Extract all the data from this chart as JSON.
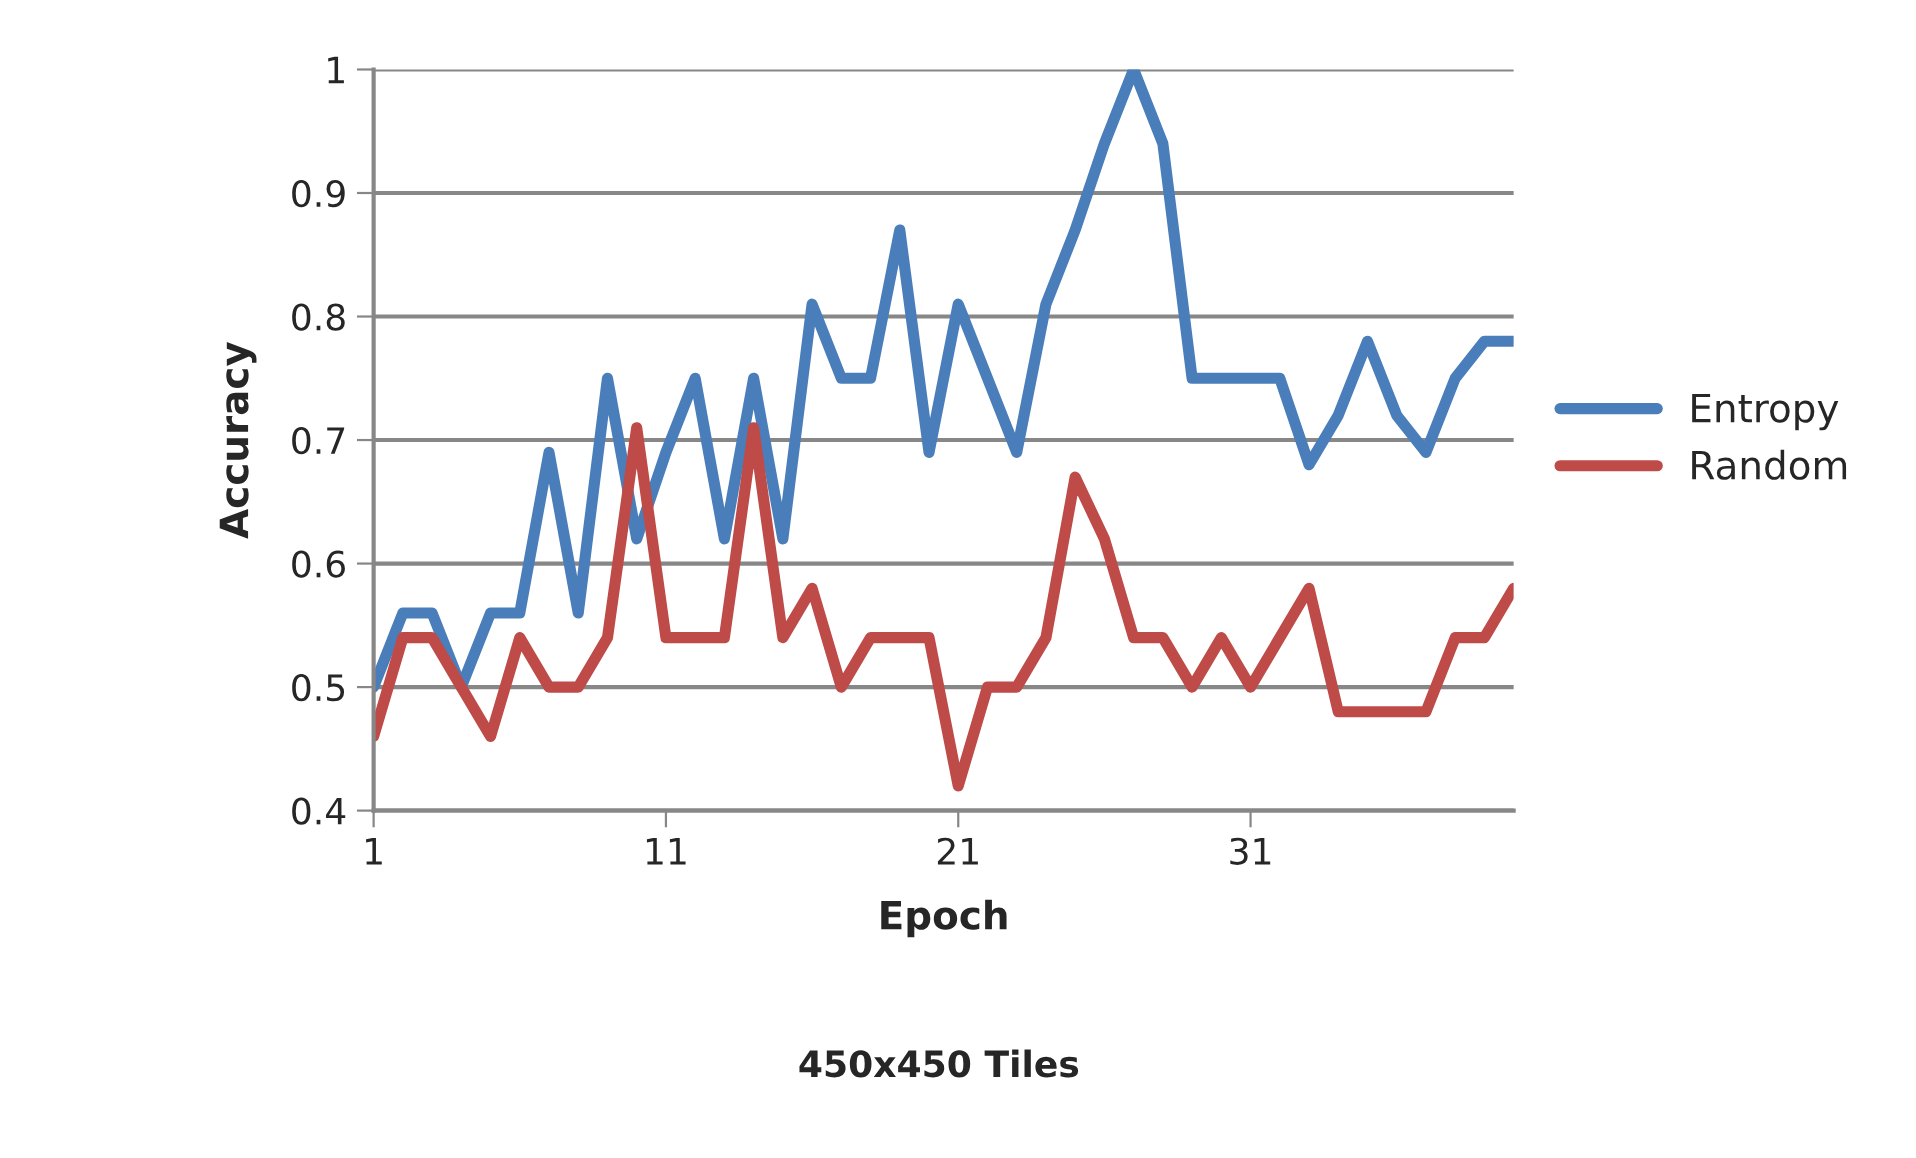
{
  "chart_data": {
    "type": "line",
    "title": "450x450 Tiles",
    "xlabel": "Epoch",
    "ylabel": "Accuracy",
    "categories": [
      "1",
      null,
      null,
      null,
      null,
      null,
      null,
      null,
      null,
      null,
      "11",
      null,
      null,
      null,
      null,
      null,
      null,
      null,
      null,
      null,
      "21",
      null,
      null,
      null,
      null,
      null,
      null,
      null,
      null,
      null,
      "31",
      null,
      null,
      null,
      null,
      null,
      null,
      null,
      null,
      null
    ],
    "series": [
      {
        "name": "Entropy",
        "color": "#4a7ebb",
        "values": [
          0.5,
          0.56,
          0.56,
          0.5,
          0.56,
          0.56,
          0.69,
          0.56,
          0.75,
          0.62,
          0.69,
          0.75,
          0.62,
          0.75,
          0.62,
          0.81,
          0.75,
          0.75,
          0.87,
          0.69,
          0.81,
          0.75,
          0.69,
          0.81,
          0.87,
          0.94,
          1.0,
          0.94,
          0.75,
          0.75,
          0.75,
          0.75,
          0.68,
          0.72,
          0.78,
          0.72,
          0.69,
          0.75,
          0.78,
          0.78
        ]
      },
      {
        "name": "Random",
        "color": "#be4b48",
        "values": [
          0.46,
          0.54,
          0.54,
          0.5,
          0.46,
          0.54,
          0.5,
          0.5,
          0.54,
          0.71,
          0.54,
          0.54,
          0.54,
          0.71,
          0.54,
          0.58,
          0.5,
          0.54,
          0.54,
          0.54,
          0.42,
          0.5,
          0.5,
          0.54,
          0.67,
          0.62,
          0.54,
          0.54,
          0.5,
          0.54,
          0.5,
          0.54,
          0.58,
          0.48,
          0.48,
          0.48,
          0.48,
          0.54,
          0.54,
          0.58
        ]
      }
    ],
    "ylim": [
      0.4,
      1
    ],
    "yticks": [
      0.4,
      0.5,
      0.6,
      0.7,
      0.8,
      0.9,
      1
    ],
    "grid": "y",
    "legend": "right",
    "marker": "none",
    "line_style": "solid"
  }
}
